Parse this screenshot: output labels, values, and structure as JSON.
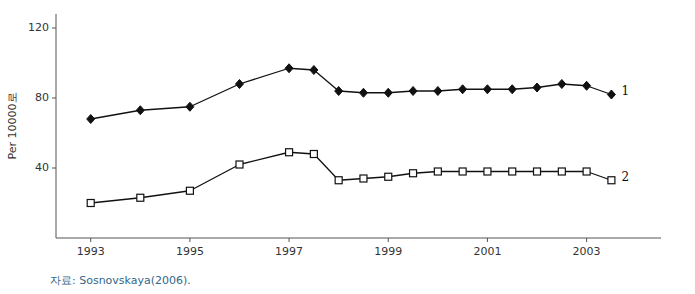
{
  "chart_data": {
    "type": "line",
    "x": [
      1993,
      1994,
      1995,
      1996,
      1997,
      1997.5,
      1998,
      1998.5,
      1999,
      1999.5,
      2000,
      2000.5,
      2001,
      2001.5,
      2002,
      2002.5,
      2003,
      2003.5
    ],
    "series": [
      {
        "name": "1",
        "color": "#111111",
        "marker": "diamond",
        "values": [
          68,
          73,
          75,
          88,
          97,
          96,
          84,
          83,
          83,
          84,
          84,
          85,
          85,
          85,
          86,
          88,
          87,
          82
        ]
      },
      {
        "name": "2",
        "color": "#111111",
        "marker": "open-square",
        "values": [
          20,
          23,
          27,
          42,
          49,
          48,
          33,
          34,
          35,
          37,
          38,
          38,
          38,
          38,
          38,
          38,
          38,
          33
        ]
      }
    ],
    "y_label": "Per 10000로",
    "annotations": [
      "자료:  Sosnovskaya(2006)."
    ],
    "xlim": [
      1992.3,
      2004.5
    ],
    "xticks": [
      1993,
      1995,
      1997,
      1999,
      2001,
      2003
    ],
    "ylim": [
      0,
      128
    ],
    "yticks": [
      40,
      80,
      120
    ],
    "grid": false
  }
}
